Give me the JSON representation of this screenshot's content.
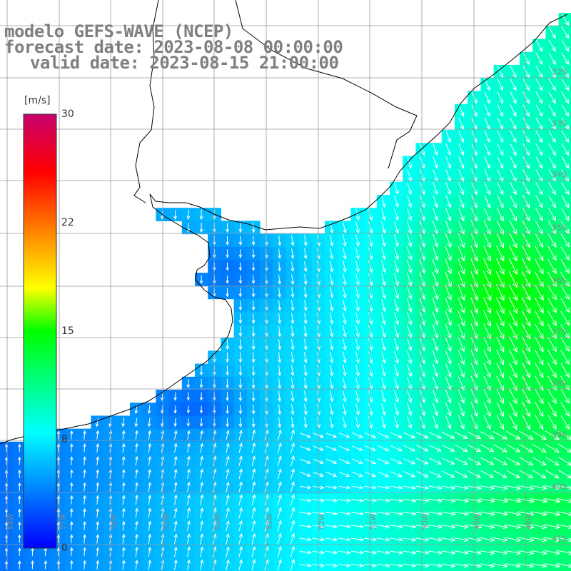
{
  "title": {
    "line1": "modelo GEFS-WAVE (NCEP)",
    "line2": "forecast date: 2023-08-08 00:00:00",
    "line3": "valid date: 2023-08-15 21:00:00"
  },
  "colorbar": {
    "unit": "[m/s]",
    "ticks": [
      "30",
      "22",
      "15",
      "8",
      "0"
    ],
    "colors": [
      "#0000ff",
      "#0080ff",
      "#00ffff",
      "#00ff00",
      "#ffff00",
      "#ff8000",
      "#ff0000",
      "#c8006e"
    ]
  },
  "grid": {
    "lat_labels": [
      "32S",
      "33S",
      "34S",
      "35S",
      "36S",
      "37S",
      "38S",
      "39S",
      "40S",
      "41S"
    ],
    "lon_labels": [
      "58W",
      "57W",
      "56W",
      "55W",
      "54W",
      "53W",
      "52W",
      "51W",
      "50W",
      "49W",
      "48W"
    ]
  },
  "legend_placement": "left",
  "colors": {
    "land": "#ffffff",
    "coast": "#000000",
    "gridline": "#999999",
    "arrow": "#ffffff",
    "title": "#7f7f7f"
  }
}
